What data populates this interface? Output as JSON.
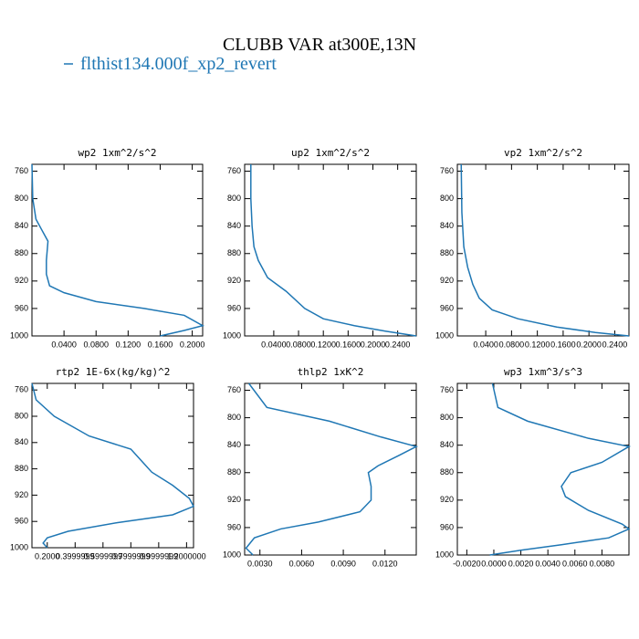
{
  "title": "CLUBB VAR at300E,13N",
  "legend": {
    "name": "flthist134.000f_xp2_revert",
    "color": "#1f77b4"
  },
  "chart_data": [
    {
      "type": "line",
      "title": "wp2  1xm^2/s^2",
      "levels": [
        750,
        800,
        830,
        845,
        862,
        890,
        910,
        927,
        937,
        950,
        960,
        970,
        985,
        992,
        1000
      ],
      "values": [
        0.0,
        0.001,
        0.005,
        0.012,
        0.02,
        0.018,
        0.018,
        0.022,
        0.04,
        0.08,
        0.14,
        0.19,
        0.213,
        0.19,
        0.16
      ],
      "xlim": [
        0,
        0.213
      ],
      "xticks": [
        {
          "value": 0.04,
          "label": "0.0400"
        },
        {
          "value": 0.08,
          "label": "0.0800"
        },
        {
          "value": 0.12,
          "label": "0.1200"
        },
        {
          "value": 0.16,
          "label": "0.1600"
        },
        {
          "value": 0.2,
          "label": "0.2000"
        }
      ],
      "ylim": [
        750,
        1000
      ],
      "yticks": [
        760,
        800,
        840,
        880,
        920,
        960,
        1000
      ],
      "y_reversed": true
    },
    {
      "type": "line",
      "title": "up2  1xm^2/s^2",
      "levels": [
        750,
        800,
        840,
        870,
        890,
        915,
        935,
        960,
        975,
        985,
        993,
        1000
      ],
      "values": [
        0.003,
        0.003,
        0.005,
        0.008,
        0.015,
        0.03,
        0.06,
        0.09,
        0.12,
        0.17,
        0.22,
        0.27
      ],
      "xlim": [
        -0.007,
        0.27
      ],
      "xticks": [
        {
          "value": 0.04,
          "label": "0.0400"
        },
        {
          "value": 0.08,
          "label": "0.0800"
        },
        {
          "value": 0.12,
          "label": "0.1200"
        },
        {
          "value": 0.16,
          "label": "0.1600"
        },
        {
          "value": 0.2,
          "label": "0.2000"
        },
        {
          "value": 0.24,
          "label": "0.2400"
        }
      ],
      "ylim": [
        750,
        1000
      ],
      "yticks": [
        760,
        800,
        840,
        880,
        920,
        960,
        1000
      ],
      "y_reversed": true
    },
    {
      "type": "line",
      "title": "vp2  1xm^2/s^2",
      "levels": [
        750,
        820,
        870,
        900,
        925,
        945,
        962,
        975,
        987,
        995,
        1000
      ],
      "values": [
        0.002,
        0.003,
        0.006,
        0.012,
        0.02,
        0.03,
        0.05,
        0.09,
        0.15,
        0.21,
        0.262
      ],
      "xlim": [
        -0.004,
        0.262
      ],
      "xticks": [
        {
          "value": 0.04,
          "label": "0.0400"
        },
        {
          "value": 0.08,
          "label": "0.0800"
        },
        {
          "value": 0.12,
          "label": "0.1200"
        },
        {
          "value": 0.16,
          "label": "0.1600"
        },
        {
          "value": 0.2,
          "label": "0.2000"
        },
        {
          "value": 0.24,
          "label": "0.2400"
        }
      ],
      "ylim": [
        750,
        1000
      ],
      "yticks": [
        760,
        800,
        840,
        880,
        920,
        960,
        1000
      ],
      "y_reversed": true
    },
    {
      "type": "line",
      "title": "rtp2  1E-6x(kg/kg)^2",
      "levels": [
        750,
        775,
        800,
        830,
        850,
        885,
        905,
        925,
        937,
        950,
        962,
        975,
        985,
        993,
        1000
      ],
      "values": [
        0.09,
        0.12,
        0.25,
        0.5,
        0.8,
        0.95,
        1.1,
        1.22,
        1.25,
        1.1,
        0.7,
        0.35,
        0.2,
        0.17,
        0.2
      ],
      "xlim": [
        0.09,
        1.25
      ],
      "xticks": [
        {
          "value": 0.2,
          "label": "0.2000"
        },
        {
          "value": 0.4,
          "label": "0.3999999"
        },
        {
          "value": 0.6,
          "label": "0.5999999"
        },
        {
          "value": 0.8,
          "label": "0.7999999"
        },
        {
          "value": 1.0,
          "label": "0.9999999"
        },
        {
          "value": 1.2,
          "label": "1.2000000"
        }
      ],
      "ylim": [
        750,
        1000
      ],
      "yticks": [
        760,
        800,
        840,
        880,
        920,
        960,
        1000
      ],
      "y_reversed": true
    },
    {
      "type": "line",
      "title": "thlp2  1xK^2",
      "levels": [
        750,
        785,
        805,
        828,
        842,
        855,
        870,
        880,
        900,
        920,
        937,
        952,
        962,
        975,
        990,
        1000
      ],
      "values": [
        0.0022,
        0.0035,
        0.008,
        0.0117,
        0.01425,
        0.013,
        0.0115,
        0.0108,
        0.011,
        0.011,
        0.0102,
        0.0072,
        0.0045,
        0.0026,
        0.002,
        0.0025
      ],
      "xlim": [
        0.0019,
        0.01425
      ],
      "xticks": [
        {
          "value": 0.003,
          "label": "0.0030"
        },
        {
          "value": 0.006,
          "label": "0.0060"
        },
        {
          "value": 0.009,
          "label": "0.0090"
        },
        {
          "value": 0.012,
          "label": "0.0120"
        }
      ],
      "ylim": [
        750,
        1000
      ],
      "yticks": [
        760,
        800,
        840,
        880,
        920,
        960,
        1000
      ],
      "y_reversed": true
    },
    {
      "type": "line",
      "title": "wp3  1xm^3/s^3",
      "levels": [
        750,
        785,
        805,
        830,
        842,
        865,
        880,
        900,
        915,
        935,
        955,
        962,
        975,
        985,
        993,
        1000
      ],
      "values": [
        -0.0001,
        0.0003,
        0.0025,
        0.007,
        0.01,
        0.008,
        0.0057,
        0.005,
        0.0053,
        0.007,
        0.0095,
        0.01,
        0.0085,
        0.005,
        0.002,
        -0.0003
      ],
      "xlim": [
        -0.0027,
        0.01
      ],
      "xticks": [
        {
          "value": -0.002,
          "label": "-0.0020"
        },
        {
          "value": 0,
          "label": "0.0000"
        },
        {
          "value": 0.002,
          "label": "0.0020"
        },
        {
          "value": 0.004,
          "label": "0.0040"
        },
        {
          "value": 0.006,
          "label": "0.0060"
        },
        {
          "value": 0.008,
          "label": "0.0080"
        }
      ],
      "ylim": [
        750,
        1000
      ],
      "yticks": [
        760,
        800,
        840,
        880,
        920,
        960,
        1000
      ],
      "y_reversed": true
    }
  ]
}
